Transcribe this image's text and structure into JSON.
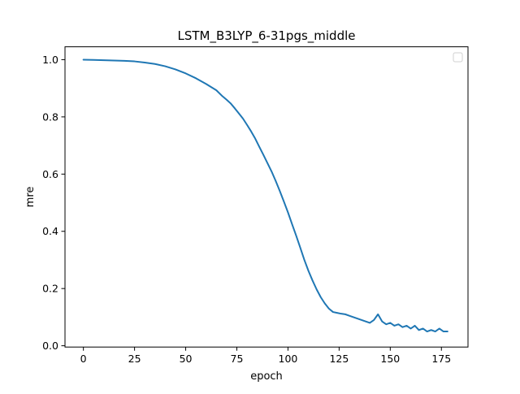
{
  "chart_data": {
    "type": "line",
    "title": "LSTM_B3LYP_6-31pgs_middle",
    "xlabel": "epoch",
    "ylabel": "mre",
    "xlim": [
      -9,
      188
    ],
    "ylim": [
      0,
      1.0
    ],
    "xticks": [
      0,
      25,
      50,
      75,
      100,
      125,
      150,
      175
    ],
    "yticks": [
      0.0,
      0.2,
      0.4,
      0.6,
      0.8,
      1.0
    ],
    "ytick_labels": [
      "0.0",
      "0.2",
      "0.4",
      "0.6",
      "0.8",
      "1.0"
    ],
    "grid": false,
    "legend": {
      "position": "top-right",
      "entries": []
    },
    "series": [
      {
        "color": "#1f77b4",
        "x": [
          0,
          5,
          10,
          15,
          20,
          25,
          30,
          35,
          40,
          45,
          50,
          55,
          60,
          65,
          68,
          70,
          72,
          74,
          76,
          78,
          80,
          82,
          84,
          86,
          88,
          90,
          92,
          94,
          96,
          98,
          100,
          102,
          104,
          106,
          108,
          110,
          112,
          114,
          116,
          118,
          120,
          122,
          124,
          126,
          128,
          130,
          132,
          134,
          136,
          138,
          140,
          142,
          144,
          146,
          148,
          150,
          152,
          154,
          156,
          158,
          160,
          162,
          164,
          166,
          168,
          170,
          172,
          174,
          176,
          178
        ],
        "y": [
          1.0,
          0.999,
          0.998,
          0.997,
          0.996,
          0.994,
          0.99,
          0.985,
          0.977,
          0.966,
          0.952,
          0.935,
          0.915,
          0.893,
          0.872,
          0.86,
          0.847,
          0.83,
          0.812,
          0.794,
          0.772,
          0.749,
          0.724,
          0.695,
          0.667,
          0.638,
          0.609,
          0.576,
          0.541,
          0.504,
          0.466,
          0.425,
          0.385,
          0.343,
          0.3,
          0.262,
          0.228,
          0.197,
          0.17,
          0.148,
          0.13,
          0.118,
          0.115,
          0.112,
          0.11,
          0.105,
          0.1,
          0.095,
          0.09,
          0.085,
          0.08,
          0.09,
          0.11,
          0.085,
          0.075,
          0.08,
          0.07,
          0.075,
          0.065,
          0.07,
          0.06,
          0.07,
          0.055,
          0.06,
          0.05,
          0.055,
          0.05,
          0.06,
          0.05,
          0.05
        ]
      }
    ]
  }
}
